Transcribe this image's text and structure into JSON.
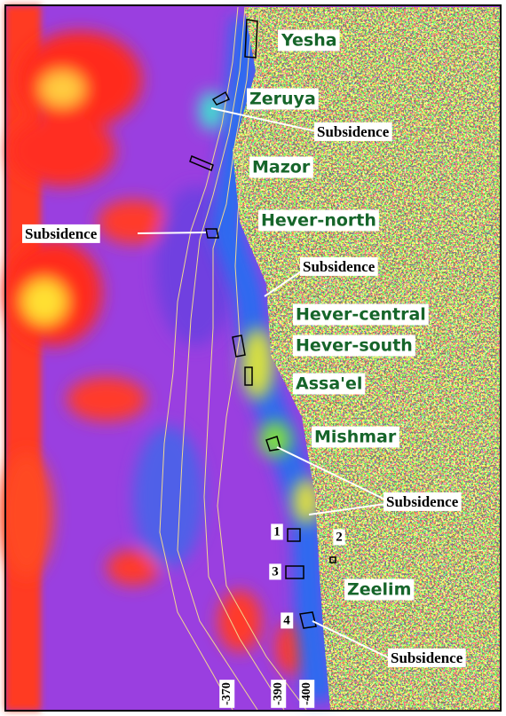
{
  "site_labels": [
    "Yesha",
    "Zeruya",
    "Mazor",
    "Hever-north",
    "Hever-central",
    "Hever-south",
    "Assa'el",
    "Mishmar",
    "Zeelim"
  ],
  "subsidence_labels": [
    "Subsidence",
    "Subsidence",
    "Subsidence",
    "Subsidence",
    "Subsidence"
  ],
  "site_markers": [
    "1",
    "2",
    "3",
    "4"
  ],
  "contour_labels": [
    "-370",
    "-390",
    "-400"
  ]
}
